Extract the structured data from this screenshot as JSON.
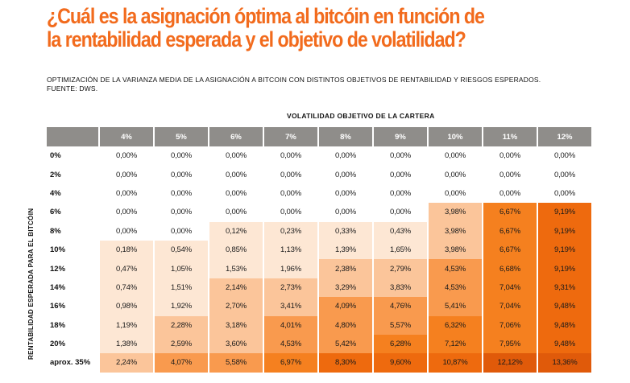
{
  "header": {
    "title_line1": "¿Cuál es la asignación óptima al bitcóin en función de",
    "title_line2": "la rentabilidad esperada y el objetivo de volatilidad?",
    "subtitle_line1": "OPTIMIZACIÓN DE LA VARIANZA MEDIA DE LA ASIGNACIÓN A BITCOIN CON DISTINTOS OBJETIVOS DE RENTABILIDAD Y RIESGOS ESPERADOS.",
    "subtitle_line2": "FUENTE: DWS."
  },
  "colors": {
    "title": "#f26b1d",
    "header_bg": "#8f8d8a",
    "scale": [
      "#ffffff",
      "#fde7d4",
      "#fbc59a",
      "#f99a4e",
      "#f5801f",
      "#ee6a0e",
      "#e05a0a"
    ]
  },
  "chart_data": {
    "type": "heatmap",
    "title": "¿Cuál es la asignación óptima al bitcóin en función de la rentabilidad esperada y el objetivo de volatilidad?",
    "xlabel": "VOLATILIDAD OBJETIVO DE LA CARTERA",
    "ylabel": "RENTABILIDAD ESPERADA PARA EL BITCÓIN",
    "columns": [
      "4%",
      "5%",
      "6%",
      "7%",
      "8%",
      "9%",
      "10%",
      "11%",
      "12%"
    ],
    "rows": [
      "0%",
      "2%",
      "4%",
      "6%",
      "8%",
      "10%",
      "12%",
      "14%",
      "16%",
      "18%",
      "20%",
      "aprox. 35%"
    ],
    "values": [
      [
        "0,00%",
        "0,00%",
        "0,00%",
        "0,00%",
        "0,00%",
        "0,00%",
        "0,00%",
        "0,00%",
        "0,00%"
      ],
      [
        "0,00%",
        "0,00%",
        "0,00%",
        "0,00%",
        "0,00%",
        "0,00%",
        "0,00%",
        "0,00%",
        "0,00%"
      ],
      [
        "0,00%",
        "0,00%",
        "0,00%",
        "0,00%",
        "0,00%",
        "0,00%",
        "0,00%",
        "0,00%",
        "0,00%"
      ],
      [
        "0,00%",
        "0,00%",
        "0,00%",
        "0,00%",
        "0,00%",
        "0,00%",
        "3,98%",
        "6,67%",
        "9,19%"
      ],
      [
        "0,00%",
        "0,00%",
        "0,12%",
        "0,23%",
        "0,33%",
        "0,43%",
        "3,98%",
        "6,67%",
        "9,19%"
      ],
      [
        "0,18%",
        "0,54%",
        "0,85%",
        "1,13%",
        "1,39%",
        "1,65%",
        "3,98%",
        "6,67%",
        "9,19%"
      ],
      [
        "0,47%",
        "1,05%",
        "1,53%",
        "1,96%",
        "2,38%",
        "2,79%",
        "4,53%",
        "6,68%",
        "9,19%"
      ],
      [
        "0,74%",
        "1,51%",
        "2,14%",
        "2,73%",
        "3,29%",
        "3,83%",
        "4,53%",
        "7,04%",
        "9,31%"
      ],
      [
        "0,98%",
        "1,92%",
        "2,70%",
        "3,41%",
        "4,09%",
        "4,76%",
        "5,41%",
        "7,04%",
        "9,48%"
      ],
      [
        "1,19%",
        "2,28%",
        "3,18%",
        "4,01%",
        "4,80%",
        "5,57%",
        "6,32%",
        "7,06%",
        "9,48%"
      ],
      [
        "1,38%",
        "2,59%",
        "3,60%",
        "4,53%",
        "5,42%",
        "6,28%",
        "7,12%",
        "7,95%",
        "9,48%"
      ],
      [
        "2,24%",
        "4,07%",
        "5,58%",
        "6,97%",
        "8,30%",
        "9,60%",
        "10,87%",
        "12,12%",
        "13,36%"
      ]
    ]
  }
}
